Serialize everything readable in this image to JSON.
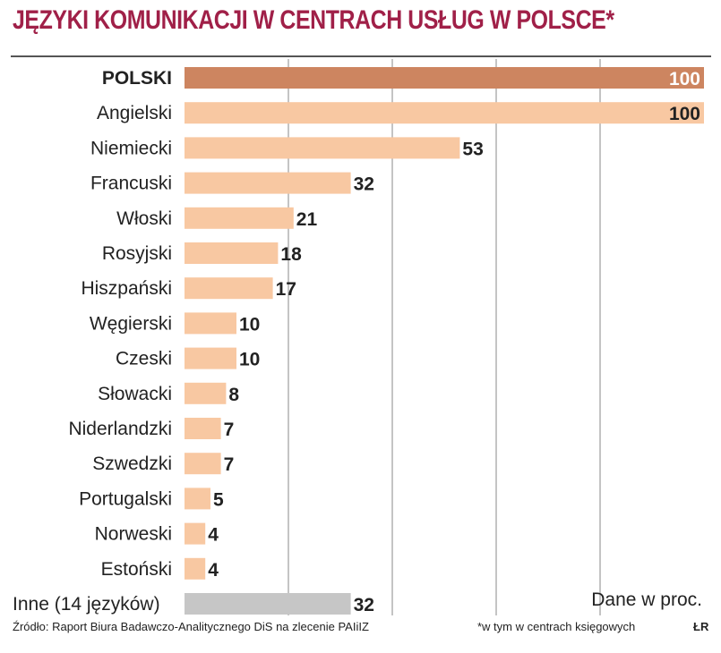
{
  "colors": {
    "title": "#a02048",
    "highlight_bar": "#cd8560",
    "bar": "#f8c8a2",
    "other_bar": "#c6c6c6",
    "gridline": "#888888"
  },
  "notes": {
    "unit": "Dane w proc.",
    "source": "Źródło: Raport Biura Badawczo-Analitycznego DiS na zlecenie PAIiIZ",
    "footnote": "*w tym w centrach księgowych",
    "credit": "ŁR"
  },
  "chart_data": {
    "type": "bar",
    "orientation": "horizontal",
    "title": "JĘZYKI KOMUNIKACJI W CENTRACH USŁUG W POLSCE*",
    "categories": [
      "POLSKI",
      "Angielski",
      "Niemiecki",
      "Francuski",
      "Włoski",
      "Rosyjski",
      "Hiszpański",
      "Węgierski",
      "Czeski",
      "Słowacki",
      "Niderlandzki",
      "Szwedzki",
      "Portugalski",
      "Norweski",
      "Estoński",
      "Inne (14 języków)"
    ],
    "values": [
      100,
      100,
      53,
      32,
      21,
      18,
      17,
      10,
      10,
      8,
      7,
      7,
      5,
      4,
      4,
      32
    ],
    "highlight_category": "POLSKI",
    "other_category": "Inne (14 języków)",
    "xlim": [
      0,
      100
    ],
    "vertical_gridlines_at": [
      20,
      40,
      60,
      80
    ],
    "grid": true,
    "legend": "none"
  }
}
